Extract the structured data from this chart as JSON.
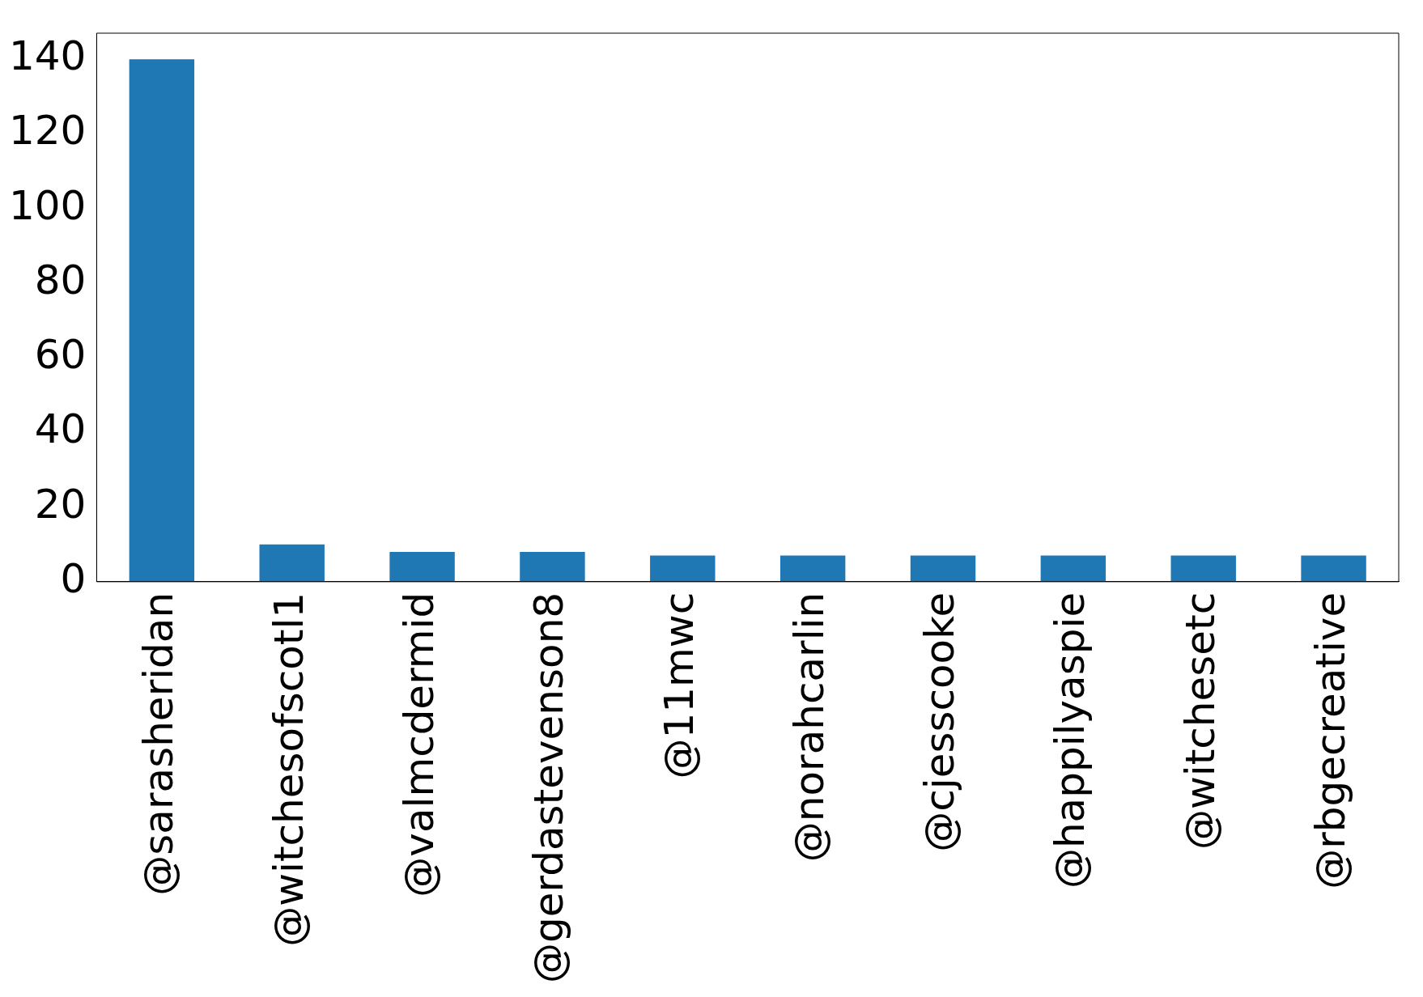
{
  "chart_data": {
    "type": "bar",
    "categories": [
      "@sarasheridan",
      "@witchesofscotl1",
      "@valmcdermid",
      "@gerdastevenson8",
      "@11mwc",
      "@norahcarlin",
      "@cjesscooke",
      "@happilyaspie",
      "@witchesetc",
      "@rbgecreative"
    ],
    "values": [
      140,
      10,
      8,
      8,
      7,
      7,
      7,
      7,
      7,
      7
    ],
    "color": "#1f77b4",
    "ylim": [
      0,
      147
    ],
    "yticks": [
      0,
      20,
      40,
      60,
      80,
      100,
      120,
      140
    ],
    "grid": false,
    "legend": false
  }
}
